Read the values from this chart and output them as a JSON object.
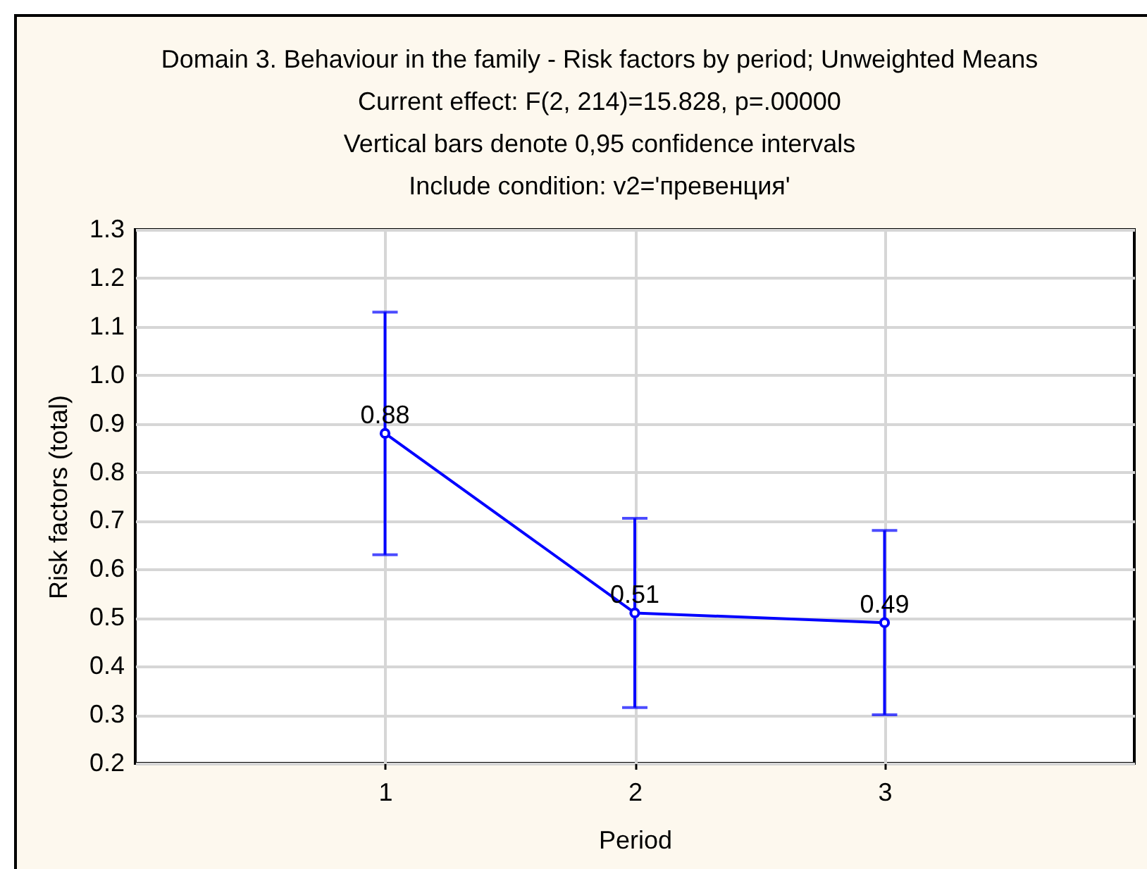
{
  "chart_data": {
    "type": "line",
    "title": "Domain 3. Behaviour in the family - Risk factors by period; Unweighted Means",
    "subtitle": "Current effect: F(2, 214)=15.828, p=.00000",
    "annotations": [
      "Vertical bars denote 0,95 confidence intervals",
      "Include condition: v2='превенция'"
    ],
    "xlabel": "Period",
    "ylabel": "Risk factors (total)",
    "categories": [
      "1",
      "2",
      "3"
    ],
    "values": [
      0.88,
      0.51,
      0.49
    ],
    "color": "#0000ff",
    "errors": [
      [
        0.63,
        1.13
      ],
      [
        0.315,
        0.705
      ],
      [
        0.3,
        0.68
      ]
    ],
    "ylim": [
      0.2,
      1.3
    ],
    "yticks": [
      0.2,
      0.3,
      0.4,
      0.5,
      0.6,
      0.7,
      0.8,
      0.9,
      {
        "value": 1,
        "label": "1.0"
      },
      1.1,
      1.2,
      1.3
    ],
    "grid": true,
    "marker": "circle",
    "line_style": "solid",
    "data_labels": true
  }
}
